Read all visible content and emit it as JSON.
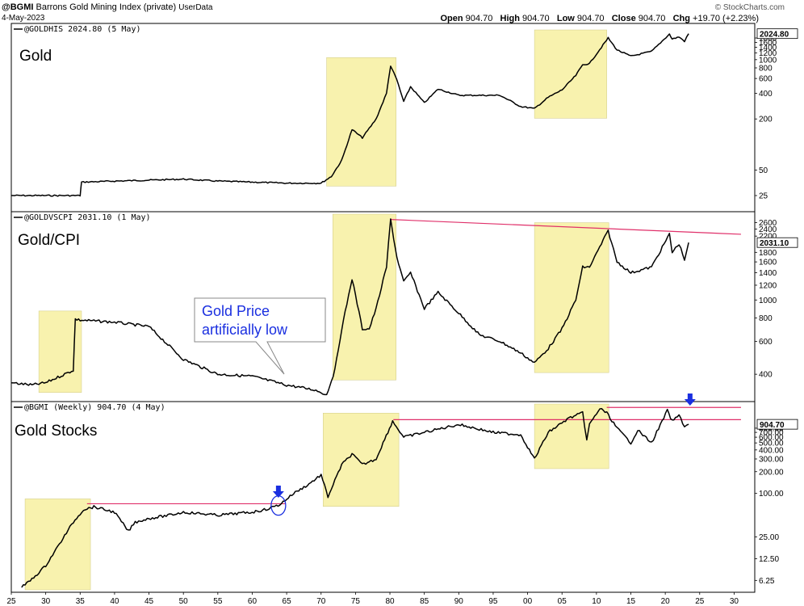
{
  "header": {
    "symbol": "@BGMI",
    "name": "Barrons Gold Mining Index (private)",
    "source": "UserData",
    "date": "4-May-2023",
    "brand": "© StockCharts.com",
    "open_label": "Open",
    "open": "904.70",
    "high_label": "High",
    "high": "904.70",
    "low_label": "Low",
    "low": "904.70",
    "close_label": "Close",
    "close": "904.70",
    "chg_label": "Chg",
    "chg": "+19.70 (+2.23%)"
  },
  "colors": {
    "highlight": "#f7f0a0",
    "trendline": "#e0306a",
    "arrow": "#1a2fe0",
    "callout_text": "#1a2fe0"
  },
  "chart_data": [
    {
      "type": "line",
      "label": "Gold",
      "title": "@GOLDHIS 2024.80 (5 May)",
      "scale": "log",
      "current_value": "2024.80",
      "yticks": [
        "25",
        "50",
        "200",
        "400",
        "600",
        "800",
        "1000",
        "1200",
        "1400",
        "1600",
        "1800"
      ],
      "series": {
        "x": [
          1925,
          1935,
          1935.2,
          1940,
          1945,
          1950,
          1955,
          1960,
          1965,
          1970,
          1971.5,
          1973,
          1974.5,
          1976,
          1978,
          1979.5,
          1980.1,
          1981,
          1982,
          1983,
          1985,
          1987,
          1990,
          1993,
          1996,
          1999,
          2001,
          2003,
          2005,
          2007,
          2008,
          2009,
          2011.7,
          2013,
          2015,
          2018,
          2020.6,
          2021,
          2022,
          2022.8,
          2023.4
        ],
        "y": [
          25,
          25,
          36,
          37,
          38,
          39,
          37,
          36,
          35,
          35,
          42,
          65,
          150,
          120,
          200,
          400,
          850,
          580,
          320,
          480,
          310,
          450,
          380,
          380,
          380,
          280,
          265,
          360,
          440,
          650,
          870,
          900,
          1800,
          1300,
          1100,
          1250,
          2000,
          1750,
          1850,
          1650,
          2025
        ]
      },
      "highlights": [
        [
          1970.8,
          1980.9
        ],
        [
          2001,
          2011.5
        ]
      ]
    },
    {
      "type": "line",
      "label": "Gold/CPI",
      "title": "@GOLDVSCPI 2031.10 (1 May)",
      "scale": "log",
      "current_value": "2031.10",
      "yticks": [
        "400",
        "600",
        "800",
        "1000",
        "1200",
        "1400",
        "1600",
        "1800",
        "2200",
        "2400",
        "2600"
      ],
      "series": {
        "x": [
          1925,
          1928,
          1930,
          1934,
          1934.3,
          1935,
          1940,
          1945,
          1950,
          1955,
          1960,
          1965,
          1969,
          1970,
          1970.8,
          1972,
          1973,
          1974.5,
          1976,
          1977,
          1978,
          1979.5,
          1980.1,
          1981,
          1982,
          1983,
          1985,
          1987,
          1990,
          1993,
          1996,
          1999,
          2001,
          2003,
          2005,
          2007,
          2008,
          2009,
          2011.7,
          2013,
          2015,
          2018,
          2020.6,
          2021,
          2022,
          2022.8,
          2023.4
        ],
        "y": [
          360,
          350,
          360,
          420,
          790,
          780,
          760,
          720,
          480,
          400,
          390,
          350,
          330,
          320,
          310,
          420,
          700,
          1300,
          700,
          700,
          900,
          1500,
          2700,
          1700,
          1250,
          1400,
          900,
          1100,
          850,
          650,
          600,
          520,
          460,
          550,
          700,
          1000,
          1500,
          1500,
          2350,
          1600,
          1400,
          1500,
          2250,
          1800,
          2000,
          1650,
          2031
        ]
      },
      "highlights": [
        [
          1929,
          1935.2
        ],
        [
          1971.7,
          1980.9
        ],
        [
          2001,
          2011.8
        ]
      ],
      "trendline": {
        "x": [
          1980.1,
          2031
        ],
        "y": [
          2700,
          2250
        ]
      },
      "callout": "Gold Price artificially low"
    },
    {
      "type": "line",
      "label": "Gold Stocks",
      "title": "@BGMI (Weekly) 904.70 (4 May)",
      "scale": "log",
      "current_value": "904.70",
      "yticks": [
        "6.25",
        "12.50",
        "25.00",
        "100.00",
        "200.00",
        "300.00",
        "400.00",
        "500.00",
        "600.00",
        "700.00",
        "800.00"
      ],
      "series": {
        "x": [
          1926.5,
          1928,
          1930,
          1932,
          1934,
          1935.5,
          1937,
          1940,
          1942,
          1943,
          1945,
          1948,
          1950,
          1955,
          1960,
          1962,
          1963,
          1964,
          1966,
          1968,
          1970,
          1971,
          1973,
          1974.5,
          1976,
          1978,
          1979,
          1980.4,
          1982,
          1985,
          1990,
          1995,
          1999,
          2001,
          2003,
          2006,
          2008,
          2008.6,
          2009,
          2010.5,
          2011.5,
          2013,
          2015,
          2016,
          2018,
          2020.3,
          2021,
          2022,
          2022.8,
          2023.4
        ],
        "y": [
          5,
          6.5,
          10,
          20,
          40,
          60,
          65,
          55,
          30,
          40,
          45,
          50,
          55,
          50,
          55,
          60,
          65,
          70,
          100,
          130,
          180,
          90,
          250,
          350,
          250,
          300,
          500,
          1000,
          600,
          700,
          900,
          700,
          650,
          300,
          700,
          1100,
          1300,
          550,
          900,
          1500,
          1300,
          800,
          500,
          750,
          500,
          1400,
          1000,
          1200,
          850,
          905
        ]
      },
      "highlights": [
        [
          1927,
          1936.5
        ],
        [
          1970.3,
          1981.3
        ],
        [
          2001,
          2011.8
        ]
      ],
      "trendlines": [
        {
          "x": [
            1936,
            1964.8
          ],
          "y": [
            72,
            72
          ]
        },
        {
          "x": [
            1980.5,
            2031
          ],
          "y": [
            1050,
            1050
          ]
        },
        {
          "x": [
            2011.5,
            2031
          ],
          "y": [
            1550,
            1550
          ]
        }
      ]
    }
  ],
  "x_ticks": [
    "25",
    "30",
    "35",
    "40",
    "45",
    "50",
    "55",
    "60",
    "65",
    "70",
    "75",
    "80",
    "85",
    "90",
    "95",
    "00",
    "05",
    "10",
    "15",
    "20",
    "25",
    "30"
  ]
}
